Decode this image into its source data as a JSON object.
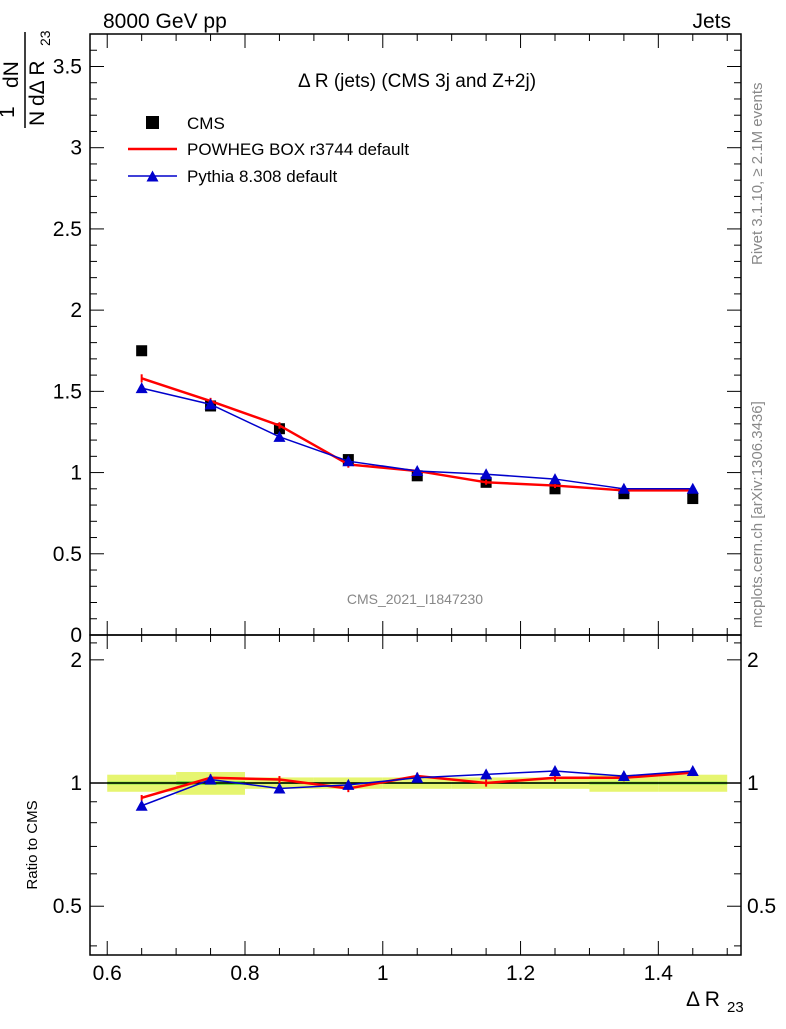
{
  "header": {
    "left": "8000 GeV pp",
    "right": "Jets"
  },
  "side_texts": {
    "rivet": "Rivet 3.1.10, ≥ 2.1M events",
    "mcplots": "mcplots.cern.ch [arXiv:1306.3436]"
  },
  "watermark": "CMS_2021_I1847230",
  "chart_data": [
    {
      "type": "line",
      "title": "Δ R (jets) (CMS 3j and Z+2j)",
      "ylabel": "1/N dN/dΔ R23",
      "ylabel_parts": {
        "one": "1",
        "n": "N",
        "dn": "dN",
        "d": "dΔ R",
        "sub": "23"
      },
      "xlim": [
        0.575,
        1.52
      ],
      "ylim": [
        0,
        3.7
      ],
      "yticks": [
        0,
        0.5,
        1,
        1.5,
        2,
        2.5,
        3,
        3.5
      ],
      "ytick_labels": [
        "0",
        "0.5",
        "1",
        "1.5",
        "2",
        "2.5",
        "3",
        "3.5"
      ],
      "x": [
        0.65,
        0.75,
        0.85,
        0.95,
        1.05,
        1.15,
        1.25,
        1.35,
        1.45
      ],
      "legend_position": "top-left",
      "series": [
        {
          "name": "CMS",
          "style": "markers",
          "marker": "square",
          "color": "#000000",
          "values": [
            1.75,
            1.41,
            1.27,
            1.08,
            0.98,
            0.94,
            0.9,
            0.87,
            0.84
          ]
        },
        {
          "name": "POWHEG BOX r3744 default",
          "style": "line",
          "color": "#ff0000",
          "values": [
            1.58,
            1.44,
            1.29,
            1.05,
            1.01,
            0.94,
            0.92,
            0.89,
            0.89
          ],
          "errors": [
            0.025,
            0.02,
            0.02,
            0.02,
            0.02,
            0.015,
            0.015,
            0.015,
            0.015
          ]
        },
        {
          "name": "Pythia 8.308 default",
          "style": "line+markers",
          "marker": "triangle",
          "color": "#0000cc",
          "values": [
            1.52,
            1.42,
            1.22,
            1.07,
            1.01,
            0.99,
            0.96,
            0.9,
            0.9
          ]
        }
      ]
    },
    {
      "type": "line",
      "xlabel": "Δ R23",
      "xlabel_parts": {
        "main": "Δ R",
        "sub": "23"
      },
      "ylabel": "Ratio to CMS",
      "ylim": [
        0.38,
        2.3
      ],
      "yticks": [
        0.5,
        1,
        2
      ],
      "ytick_labels": [
        "0.5",
        "1",
        "2"
      ],
      "xticks": [
        0.6,
        0.8,
        1.0,
        1.2,
        1.4
      ],
      "xtick_labels": [
        "0.6",
        "0.8",
        "1",
        "1.2",
        "1.4"
      ],
      "xlim": [
        0.575,
        1.52
      ],
      "x": [
        0.65,
        0.75,
        0.85,
        0.95,
        1.05,
        1.15,
        1.25,
        1.35,
        1.45
      ],
      "band": {
        "inner_color": "#00cc00",
        "outer_color": "#e6f570",
        "bins": [
          [
            0.6,
            0.7,
            0.03
          ],
          [
            0.7,
            0.8,
            0.04
          ],
          [
            0.8,
            0.9,
            0.02
          ],
          [
            0.9,
            1.0,
            0.02
          ],
          [
            1.0,
            1.1,
            0.02
          ],
          [
            1.1,
            1.2,
            0.02
          ],
          [
            1.2,
            1.3,
            0.02
          ],
          [
            1.3,
            1.4,
            0.03
          ],
          [
            1.4,
            1.5,
            0.03
          ]
        ]
      },
      "series": [
        {
          "name": "POWHEG BOX r3744 default",
          "color": "#ff0000",
          "values": [
            0.92,
            1.03,
            1.02,
            0.97,
            1.04,
            1.0,
            1.03,
            1.03,
            1.06
          ],
          "errors": [
            0.015,
            0.02,
            0.02,
            0.02,
            0.02,
            0.02,
            0.02,
            0.02,
            0.02
          ]
        },
        {
          "name": "Pythia 8.308 default",
          "color": "#0000cc",
          "values": [
            0.88,
            1.02,
            0.97,
            0.99,
            1.03,
            1.05,
            1.07,
            1.04,
            1.07
          ]
        }
      ]
    }
  ]
}
